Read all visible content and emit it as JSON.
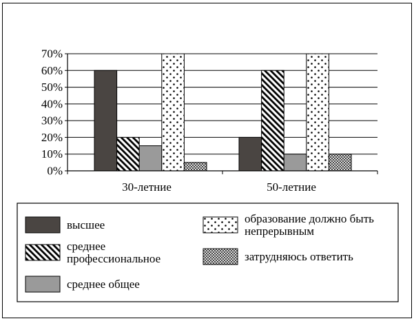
{
  "chart_data": {
    "type": "bar",
    "categories": [
      "30-летние",
      "50-летние"
    ],
    "ylim": [
      0,
      70
    ],
    "yticks": [
      0,
      10,
      20,
      30,
      40,
      50,
      60,
      70
    ],
    "ytick_labels": [
      "0%",
      "10%",
      "20%",
      "30%",
      "40%",
      "50%",
      "60%",
      "70%"
    ],
    "grid": true,
    "legend_position": "bottom",
    "series": [
      {
        "name": "высшее",
        "legend_lines": [
          "высшее"
        ],
        "pattern": "solid-dark",
        "values": [
          60,
          20
        ]
      },
      {
        "name": "среднее профессиональное",
        "legend_lines": [
          "среднее",
          "профессиональное"
        ],
        "pattern": "diagonal-hatch",
        "values": [
          20,
          60
        ]
      },
      {
        "name": "среднее общее",
        "legend_lines": [
          "среднее общее"
        ],
        "pattern": "solid-gray",
        "values": [
          15,
          10
        ]
      },
      {
        "name": "образование должно быть непрерывным",
        "legend_lines": [
          "образование должно быть",
          "непрерывным"
        ],
        "pattern": "dots",
        "values": [
          70,
          70
        ]
      },
      {
        "name": "затрудняюсь ответить",
        "legend_lines": [
          "затрудняюсь ответить"
        ],
        "pattern": "crosshatch",
        "values": [
          5,
          10
        ]
      }
    ],
    "colors": {
      "dark": "#4a4542",
      "gray": "#9a9a9a",
      "line": "#000000",
      "background": "#ffffff"
    }
  }
}
